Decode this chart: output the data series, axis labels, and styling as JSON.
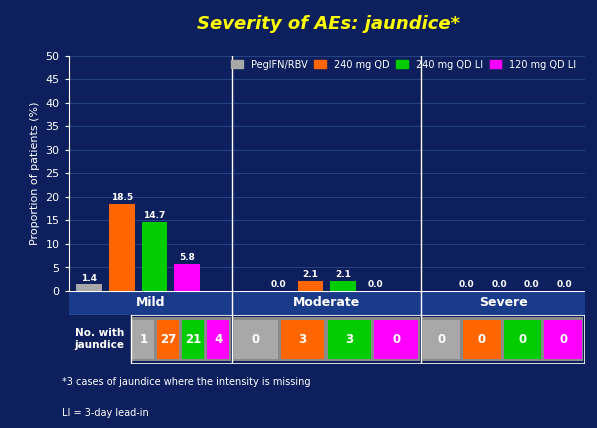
{
  "title": "Severity of AEs: jaundice*",
  "title_color": "#FFFF00",
  "background_color": "#0D1F5C",
  "plot_bg_color": "#0D1F5C",
  "ylabel": "Proportion of patients (%)",
  "ylabel_color": "#FFFFFF",
  "ylim": [
    0,
    50
  ],
  "yticks": [
    0,
    5,
    10,
    15,
    20,
    25,
    30,
    35,
    40,
    45,
    50
  ],
  "groups": [
    "Mild",
    "Moderate",
    "Severe"
  ],
  "series_names": [
    "PeglFN/RBV",
    "240 mg QD",
    "240 mg QD LI",
    "120 mg QD LI"
  ],
  "series_colors": [
    "#A8A8A8",
    "#FF6600",
    "#00CC00",
    "#FF00FF"
  ],
  "values": {
    "Mild": [
      1.4,
      18.5,
      14.7,
      5.8
    ],
    "Moderate": [
      0.0,
      2.1,
      2.1,
      0.0
    ],
    "Severe": [
      0.0,
      0.0,
      0.0,
      0.0
    ]
  },
  "table_values": {
    "Mild": [
      "1",
      "27",
      "21",
      "4"
    ],
    "Moderate": [
      "0",
      "3",
      "3",
      "0"
    ],
    "Severe": [
      "0",
      "0",
      "0",
      "0"
    ]
  },
  "table_row_label": "No. with\njaundice",
  "footnote1": "*3 cases of jaundice where the intensity is missing",
  "footnote2": "LI = 3-day lead-in",
  "axis_color": "#FFFFFF",
  "tick_color": "#FFFFFF",
  "section_label_bg": "#1A3A7A",
  "table_section_gray": "#8A8A8A"
}
